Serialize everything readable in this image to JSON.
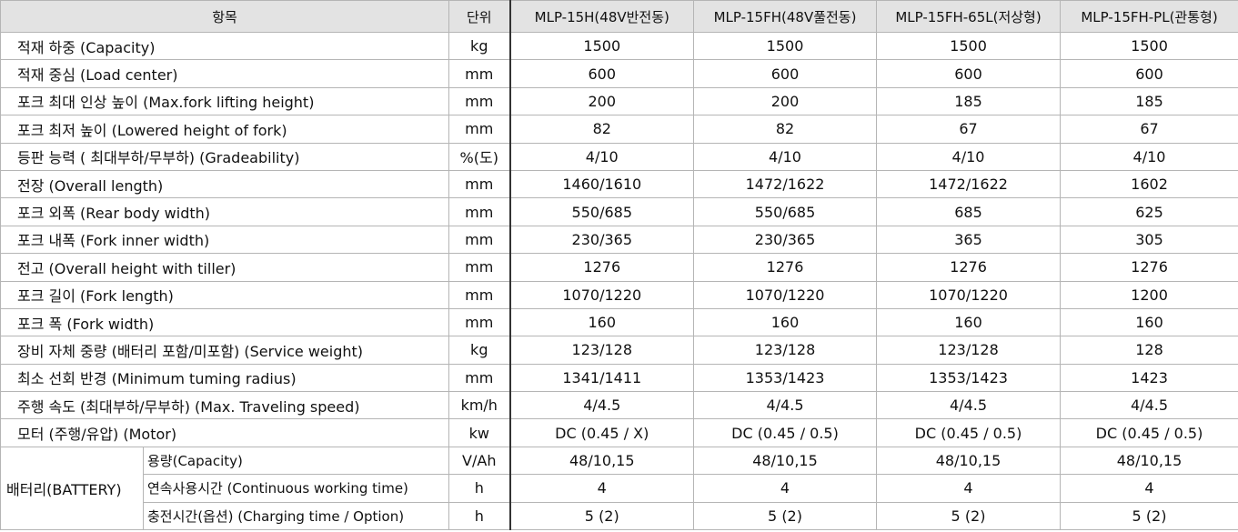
{
  "table": {
    "header": [
      "항목",
      "단위",
      "MLP-15H(48V반전동)",
      "MLP-15FH(48V풀전동)",
      "MLP-15FH-65L(저상형)",
      "MLP-15FH-PL(관통형)"
    ],
    "rows": [
      [
        "적재 하중 (Capacity)",
        "kg",
        "1500",
        "1500",
        "1500",
        "1500"
      ],
      [
        "적재 중심 (Load center)",
        "mm",
        "600",
        "600",
        "600",
        "600"
      ],
      [
        "포크 최대 인상 높이 (Max.fork lifting height)",
        "mm",
        "200",
        "200",
        "185",
        "185"
      ],
      [
        "포크 최저 높이 (Lowered height of fork)",
        "mm",
        "82",
        "82",
        "67",
        "67"
      ],
      [
        "등판 능력 ( 최대부하/무부하) (Gradeability)",
        "%(도)",
        "4/10",
        "4/10",
        "4/10",
        "4/10"
      ],
      [
        "전장 (Overall length)",
        "mm",
        "1460/1610",
        "1472/1622",
        "1472/1622",
        "1602"
      ],
      [
        "포크 외폭 (Rear body width)",
        "mm",
        "550/685",
        "550/685",
        "685",
        "625"
      ],
      [
        "포크 내폭 (Fork inner width)",
        "mm",
        "230/365",
        "230/365",
        "365",
        "305"
      ],
      [
        "전고 (Overall height with tiller)",
        "mm",
        "1276",
        "1276",
        "1276",
        "1276"
      ],
      [
        "포크 길이 (Fork length)",
        "mm",
        "1070/1220",
        "1070/1220",
        "1070/1220",
        "1200"
      ],
      [
        "포크 폭 (Fork width)",
        "mm",
        "160",
        "160",
        "160",
        "160"
      ],
      [
        "장비 자체 중량 (배터리 포함/미포함) (Service weight)",
        "kg",
        "123/128",
        "123/128",
        "123/128",
        "128"
      ],
      [
        "최소 선회 반경 (Minimum tuming radius)",
        "mm",
        "1341/1411",
        "1353/1423",
        "1353/1423",
        "1423"
      ],
      [
        "주행 속도 (최대부하/무부하) (Max. Traveling speed)",
        "km/h",
        "4/4.5",
        "4/4.5",
        "4/4.5",
        "4/4.5"
      ],
      [
        "모터 (주행/유압) (Motor)",
        "kw",
        "DC (0.45 / X)",
        "DC (0.45 / 0.5)",
        "DC (0.45 / 0.5)",
        "DC (0.45 / 0.5)"
      ]
    ],
    "battery": {
      "label": "배터리(BATTERY)",
      "rows": [
        [
          "용량(Capacity)",
          "V/Ah",
          "48/10,15",
          "48/10,15",
          "48/10,15",
          "48/10,15"
        ],
        [
          "연속사용시간 (Continuous working time)",
          "h",
          "4",
          "4",
          "4",
          "4"
        ],
        [
          "충전시간(옵션) (Charging time / Option)",
          "h",
          "5 (2)",
          "5 (2)",
          "5 (2)",
          "5 (2)"
        ]
      ]
    }
  }
}
